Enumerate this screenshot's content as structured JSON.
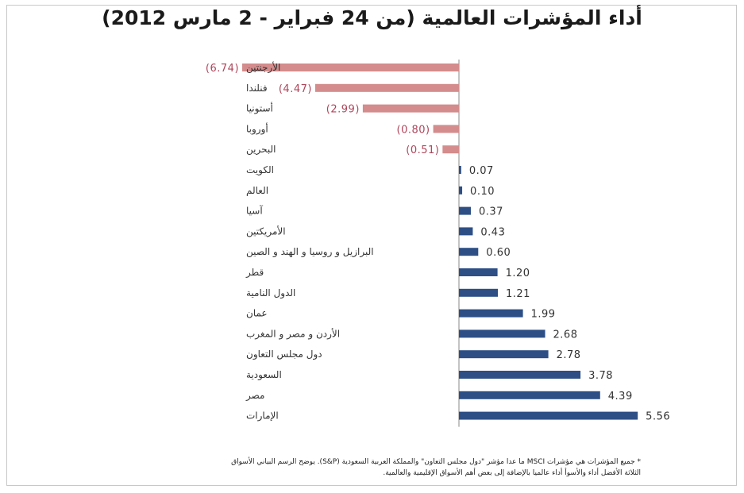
{
  "colors": {
    "negative": "#d48c8c",
    "positive": "#2d4f86",
    "axis": "#888888",
    "neg_label": "#b0455a",
    "pos_label": "#333333"
  },
  "footnote": {
    "line1": "* جميع المؤشرات هي مؤشرات MSCI ما عدا مؤشر \"دول مجلس التعاون\" والمملكة العربية السعودية (S&P). يوضح الرسم البياني الأسواق",
    "line2": "الثلاثة الأفضل أداء والأسوأ أداء عالميا بالإضافة إلى بعض أهم الأسواق الإقليمية والعالمية."
  },
  "chart_data": {
    "type": "bar",
    "orientation": "horizontal",
    "title": "أداء المؤشرات العالمية (من 24 فبراير - 2 مارس 2012)",
    "categories": [
      "الأرجنتين",
      "فنلندا",
      "أستونيا",
      "أوروبا",
      "البحرين",
      "الكويت",
      "العالم",
      "آسيا",
      "الأمريكتين",
      "البرازيل و روسيا و الهند و الصين",
      "قطر",
      "الدول النامية",
      "عمان",
      "الأردن و مصر و المغرب",
      "دول مجلس التعاون",
      "السعودية",
      "مصر",
      "الإمارات"
    ],
    "values": [
      -6.74,
      -4.47,
      -2.99,
      -0.8,
      -0.51,
      0.07,
      0.1,
      0.37,
      0.43,
      0.6,
      1.2,
      1.21,
      1.99,
      2.68,
      2.78,
      3.78,
      4.39,
      5.56
    ],
    "labels": [
      "(6.74)",
      "(4.47)",
      "(2.99)",
      "(0.80)",
      "(0.51)",
      "0.07",
      "0.10",
      "0.37",
      "0.43",
      "0.60",
      "1.20",
      "1.21",
      "1.99",
      "2.68",
      "2.78",
      "3.78",
      "4.39",
      "5.56"
    ],
    "grid": false,
    "legend": "none"
  }
}
